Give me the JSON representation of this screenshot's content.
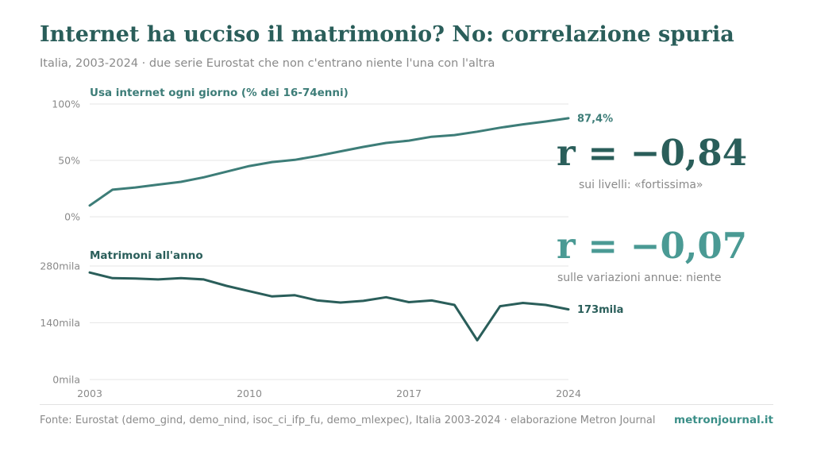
{
  "header": {
    "title": "Internet ha ucciso il matrimonio? No: correlazione spuria",
    "subtitle": "Italia, 2003-2024 · due serie Eurostat che non c'entrano niente l'una con l'altra"
  },
  "chart_data": [
    {
      "type": "line",
      "title": "Usa internet ogni giorno (% dei 16-74enni)",
      "x": [
        2003,
        2004,
        2005,
        2006,
        2007,
        2008,
        2009,
        2010,
        2011,
        2012,
        2013,
        2014,
        2015,
        2016,
        2017,
        2018,
        2019,
        2020,
        2021,
        2022,
        2023,
        2024
      ],
      "series": [
        {
          "values": [
            10,
            24,
            26,
            28.5,
            31,
            35,
            40,
            45,
            48.5,
            50.5,
            54,
            58,
            62,
            65.5,
            67.5,
            71,
            72.5,
            75.5,
            79,
            82,
            84.5,
            87.4
          ]
        }
      ],
      "yticks": [
        "100%",
        "50%",
        "0%"
      ],
      "ylim": [
        0,
        100
      ],
      "end_label": "87,4%",
      "color": "#3d7d78",
      "grid": true
    },
    {
      "type": "line",
      "title": "Matrimoni all'anno",
      "x": [
        2003,
        2004,
        2005,
        2006,
        2007,
        2008,
        2009,
        2010,
        2011,
        2012,
        2013,
        2014,
        2015,
        2016,
        2017,
        2018,
        2019,
        2020,
        2021,
        2022,
        2023,
        2024
      ],
      "series": [
        {
          "values": [
            264,
            250,
            249,
            247,
            250,
            247,
            231,
            218,
            205,
            208,
            195,
            190,
            194,
            203,
            191,
            195,
            184,
            97,
            181,
            189,
            184,
            173
          ]
        }
      ],
      "yticks": [
        "280mila",
        "140mila",
        "0mila"
      ],
      "ylim": [
        0,
        280
      ],
      "end_label": "173mila",
      "color": "#2a5e5a",
      "grid": true
    }
  ],
  "x_axis": {
    "ticks": [
      "2003",
      "2010",
      "2017",
      "2024"
    ],
    "tick_values": [
      2003,
      2010,
      2017,
      2024
    ]
  },
  "stats": [
    {
      "value": "r = −0,84",
      "note": "sui livelli: «fortissima»",
      "color": "#2a5e5a"
    },
    {
      "value": "r = −0,07",
      "note": "sulle variazioni annue: niente",
      "color": "#4a9a94"
    }
  ],
  "footer": {
    "source": "Fonte: Eurostat (demo_gind, demo_nind, isoc_ci_ifp_fu, demo_mlexpec), Italia 2003-2024 · elaborazione Metron Journal",
    "brand": "metronjournal.it"
  }
}
